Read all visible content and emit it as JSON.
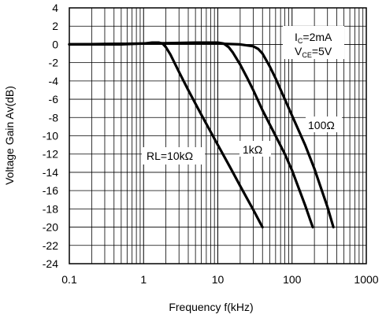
{
  "chart_data": {
    "type": "line",
    "xlabel": "Frequency f(kHz)",
    "ylabel": "Voltage Gain Av(dB)",
    "x_scale": "log",
    "xlim": [
      0.1,
      1000
    ],
    "ylim": [
      -24,
      4
    ],
    "grid": true,
    "x_ticks": [
      {
        "value": 0.1,
        "label": "0.1"
      },
      {
        "value": 1,
        "label": "1"
      },
      {
        "value": 10,
        "label": "10"
      },
      {
        "value": 100,
        "label": "100"
      },
      {
        "value": 1000,
        "label": "1000"
      }
    ],
    "y_ticks": [
      {
        "value": 4,
        "label": "4"
      },
      {
        "value": 2,
        "label": "2"
      },
      {
        "value": 0,
        "label": "0"
      },
      {
        "value": -2,
        "label": "-2"
      },
      {
        "value": -4,
        "label": "-4"
      },
      {
        "value": -6,
        "label": "-6"
      },
      {
        "value": -8,
        "label": "-8"
      },
      {
        "value": -10,
        "label": "-10"
      },
      {
        "value": -12,
        "label": "-12"
      },
      {
        "value": -14,
        "label": "-14"
      },
      {
        "value": -16,
        "label": "-16"
      },
      {
        "value": -18,
        "label": "-18"
      },
      {
        "value": -20,
        "label": "-20"
      },
      {
        "value": -22,
        "label": "-22"
      },
      {
        "value": -24,
        "label": "-24"
      }
    ],
    "series": [
      {
        "name": "RL=10kΩ",
        "x": [
          0.1,
          0.5,
          1,
          1.3,
          1.6,
          1.8,
          2,
          2.3,
          3,
          4,
          6,
          10,
          15,
          20,
          30,
          40
        ],
        "y": [
          0,
          0,
          0.1,
          0.2,
          0.2,
          0.1,
          -0.3,
          -1.1,
          -3,
          -5,
          -7.7,
          -11,
          -13.6,
          -15.5,
          -18.1,
          -20
        ]
      },
      {
        "name": "1kΩ",
        "x": [
          0.1,
          1,
          5,
          10,
          12,
          14,
          16,
          20,
          25,
          30,
          40,
          60,
          80,
          100,
          150,
          190
        ],
        "y": [
          0,
          0.1,
          0.2,
          0.2,
          0.1,
          -0.3,
          -0.9,
          -2.2,
          -3.7,
          -5,
          -7.2,
          -10,
          -12,
          -13.8,
          -17.6,
          -20
        ]
      },
      {
        "name": "100Ω",
        "x": [
          0.1,
          1,
          10,
          20,
          30,
          35,
          40,
          50,
          60,
          80,
          100,
          150,
          200,
          300,
          360
        ],
        "y": [
          0,
          0.1,
          0.1,
          0,
          -0.2,
          -0.5,
          -1,
          -2.4,
          -3.7,
          -6,
          -7.8,
          -11,
          -13.6,
          -17.8,
          -20
        ]
      }
    ],
    "annotations": {
      "conditions": {
        "line1_main": "I",
        "line1_sub": "C",
        "line1_rest": "=2mA",
        "line2_main": "V",
        "line2_sub": "CE",
        "line2_rest": "=5V"
      },
      "labels": [
        "RL=10kΩ",
        "1kΩ",
        "100Ω"
      ]
    }
  }
}
